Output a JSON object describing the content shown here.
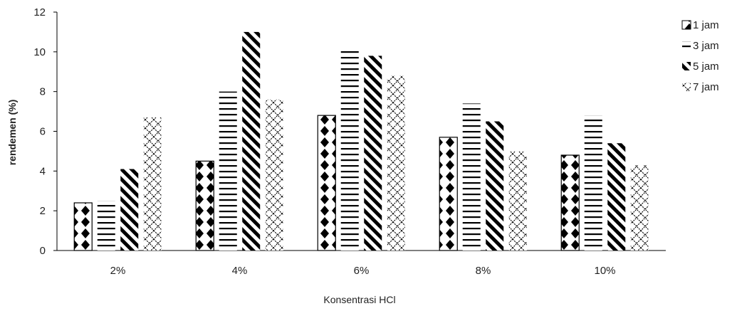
{
  "chart_data": {
    "type": "bar",
    "title": "",
    "xlabel": "Konsentrasi HCl",
    "ylabel": "rendemen (%)",
    "categories": [
      "2%",
      "4%",
      "6%",
      "8%",
      "10%"
    ],
    "ylim": [
      0,
      12
    ],
    "yticks": [
      0,
      2,
      4,
      6,
      8,
      10,
      12
    ],
    "grid": false,
    "legend_position": "right",
    "series": [
      {
        "name": "1 jam",
        "pattern": "diamond-checker",
        "values": [
          2.4,
          4.5,
          6.8,
          5.7,
          4.8
        ]
      },
      {
        "name": "3 jam",
        "pattern": "horizontal-lines",
        "values": [
          2.5,
          8.0,
          10.1,
          7.4,
          6.8
        ]
      },
      {
        "name": "5 jam",
        "pattern": "diagonal-stripes",
        "values": [
          4.1,
          11.0,
          9.8,
          6.5,
          5.4
        ]
      },
      {
        "name": "7 jam",
        "pattern": "diagonal-crosshatch",
        "values": [
          6.7,
          7.6,
          8.8,
          5.0,
          4.3
        ]
      }
    ],
    "colors": {
      "ink": "#000000",
      "axis": "#000000",
      "text": "#222222"
    }
  }
}
